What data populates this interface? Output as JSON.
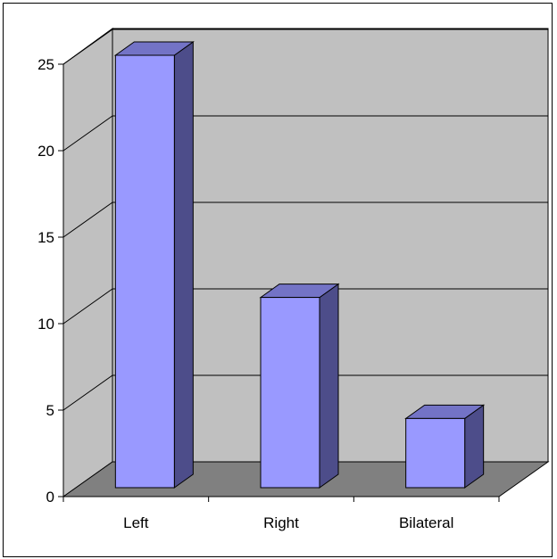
{
  "chart_data": {
    "type": "bar",
    "categories": [
      "Left",
      "Right",
      "Bilateral"
    ],
    "values": [
      25,
      11,
      4
    ],
    "ylim": [
      0,
      25
    ],
    "yticks": [
      0,
      5,
      10,
      15,
      20,
      25
    ],
    "grid": true,
    "three_d": true,
    "colors": {
      "bar_front": "#9999ff",
      "bar_side": "#4d4d8a",
      "bar_top": "#7373c6",
      "wall": "#c0c0c0",
      "floor": "#808080"
    }
  }
}
